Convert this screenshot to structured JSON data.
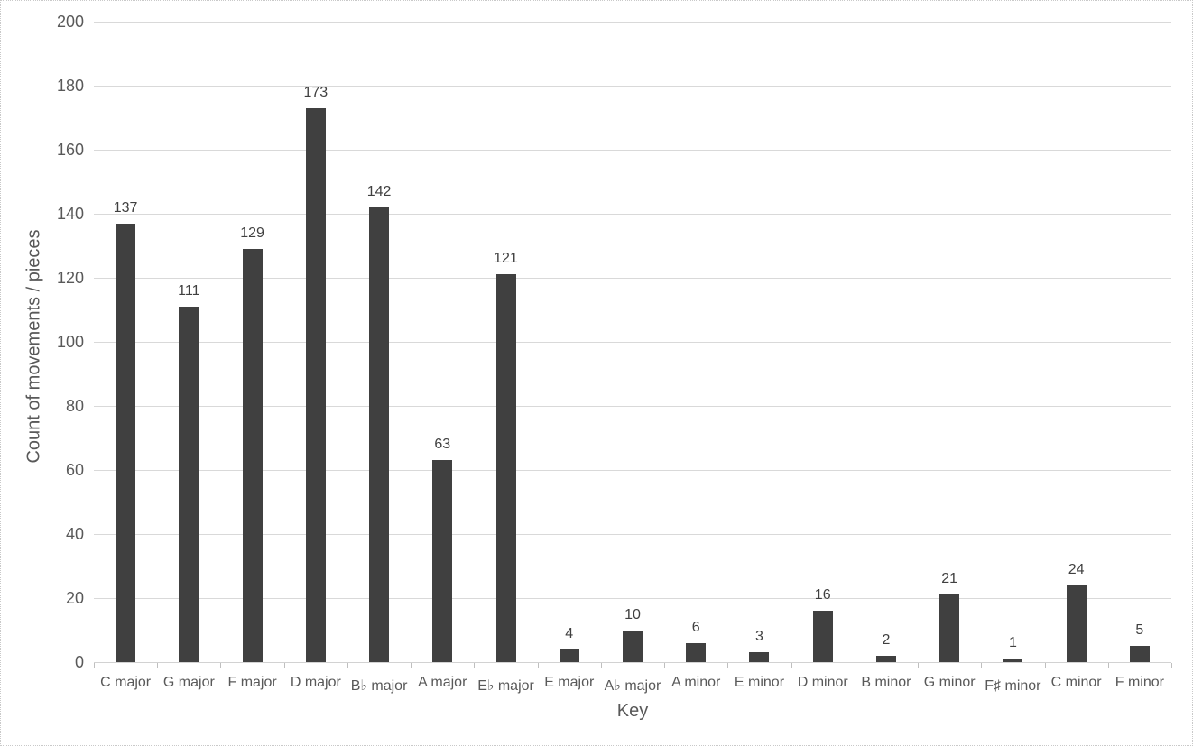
{
  "chart_data": {
    "type": "bar",
    "title": "",
    "xlabel": "Key",
    "ylabel": "Count of movements / pieces",
    "categories": [
      "C major",
      "G major",
      "F major",
      "D major",
      "B♭ major",
      "A major",
      "E♭ major",
      "E major",
      "A♭ major",
      "A minor",
      "E minor",
      "D minor",
      "B minor",
      "G minor",
      "F♯ minor",
      "C minor",
      "F minor"
    ],
    "values": [
      137,
      111,
      129,
      173,
      142,
      63,
      121,
      4,
      10,
      6,
      3,
      16,
      2,
      21,
      1,
      24,
      5
    ],
    "ylim": [
      0,
      200
    ],
    "ytick_step": 20,
    "yticks": [
      0,
      20,
      40,
      60,
      80,
      100,
      120,
      140,
      160,
      180,
      200
    ],
    "grid": "horizontal",
    "legend": "none",
    "data_labels": "above bars",
    "colors": {
      "bar": "#404040",
      "gridline": "#d9d9d9",
      "axis_line": "#d2d2d2",
      "tick_mark": "#bfbfbf",
      "tick_label": "#595959",
      "data_label": "#404040",
      "axis_title": "#595959",
      "background": "#ffffff"
    }
  }
}
